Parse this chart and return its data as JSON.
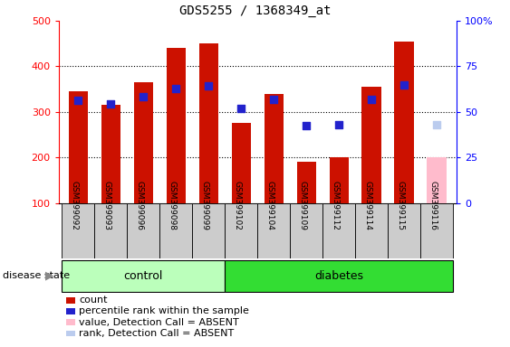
{
  "title": "GDS5255 / 1368349_at",
  "samples": [
    "GSM399092",
    "GSM399093",
    "GSM399096",
    "GSM399098",
    "GSM399099",
    "GSM399102",
    "GSM399104",
    "GSM399109",
    "GSM399112",
    "GSM399114",
    "GSM399115",
    "GSM399116"
  ],
  "count_values": [
    345,
    315,
    365,
    440,
    450,
    275,
    340,
    190,
    200,
    355,
    455,
    200
  ],
  "rank_values": [
    325,
    318,
    333,
    352,
    358,
    308,
    328,
    270,
    272,
    328,
    360,
    272
  ],
  "absent_mask": [
    false,
    false,
    false,
    false,
    false,
    false,
    false,
    false,
    false,
    false,
    false,
    true
  ],
  "control_samples": 5,
  "ylim_left": [
    100,
    500
  ],
  "ylim_right": [
    0,
    100
  ],
  "yticks_left": [
    100,
    200,
    300,
    400,
    500
  ],
  "yticks_right": [
    0,
    25,
    50,
    75,
    100
  ],
  "bar_bottom": 100,
  "bar_color_present": "#cc1100",
  "bar_color_absent": "#ffbbcc",
  "rank_color_present": "#2222cc",
  "rank_color_absent": "#bbccee",
  "control_bg": "#bbffbb",
  "diabetes_bg": "#33dd33",
  "sample_bg": "#cccccc",
  "legend_items": [
    {
      "label": "count",
      "color": "#cc1100"
    },
    {
      "label": "percentile rank within the sample",
      "color": "#2222cc"
    },
    {
      "label": "value, Detection Call = ABSENT",
      "color": "#ffbbcc"
    },
    {
      "label": "rank, Detection Call = ABSENT",
      "color": "#bbccee"
    }
  ]
}
